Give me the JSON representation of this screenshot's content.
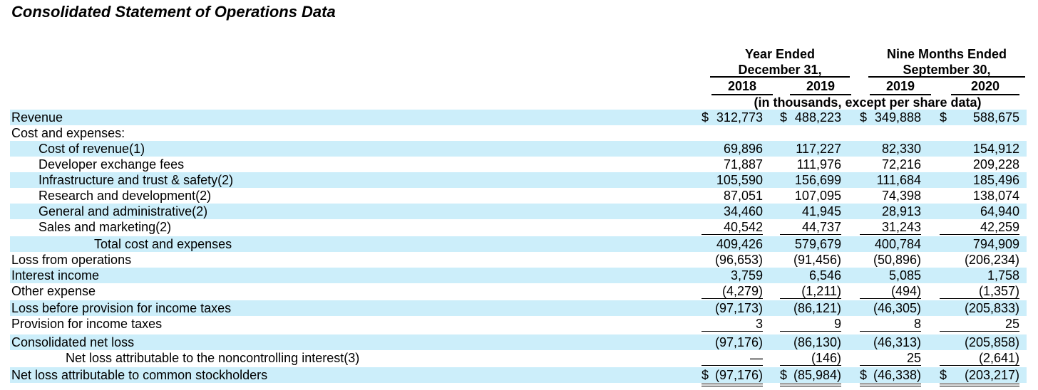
{
  "title": "Consolidated Statement of Operations Data",
  "header": {
    "year_ended": [
      "Year Ended",
      "December 31,"
    ],
    "nine_months": [
      "Nine Months Ended",
      "September 30,"
    ],
    "years": [
      "2018",
      "2019",
      "2019",
      "2020"
    ],
    "unit_note": "(in thousands, except per share data)"
  },
  "rows": [
    {
      "label": "Revenue",
      "values": [
        "312,773",
        "488,223",
        "349,888",
        "588,675"
      ],
      "dollar": true
    },
    {
      "label": "Cost and expenses:",
      "values": [
        "",
        "",
        "",
        ""
      ]
    },
    {
      "label": "Cost of revenue(1)",
      "values": [
        "69,896",
        "117,227",
        "82,330",
        "154,912"
      ]
    },
    {
      "label": "Developer exchange fees",
      "values": [
        "71,887",
        "111,976",
        "72,216",
        "209,228"
      ]
    },
    {
      "label": "Infrastructure and trust & safety(2)",
      "values": [
        "105,590",
        "156,699",
        "111,684",
        "185,496"
      ]
    },
    {
      "label": "Research and development(2)",
      "values": [
        "87,051",
        "107,095",
        "74,398",
        "138,074"
      ]
    },
    {
      "label": "General and administrative(2)",
      "values": [
        "34,460",
        "41,945",
        "28,913",
        "64,940"
      ]
    },
    {
      "label": "Sales and marketing(2)",
      "values": [
        "40,542",
        "44,737",
        "31,243",
        "42,259"
      ]
    },
    {
      "label": "Total cost and expenses",
      "values": [
        "409,426",
        "579,679",
        "400,784",
        "794,909"
      ]
    },
    {
      "label": "Loss from operations",
      "values": [
        "(96,653)",
        "(91,456)",
        "(50,896)",
        "(206,234)"
      ]
    },
    {
      "label": "Interest income",
      "values": [
        "3,759",
        "6,546",
        "5,085",
        "1,758"
      ]
    },
    {
      "label": "Other expense",
      "values": [
        "(4,279)",
        "(1,211)",
        "(494)",
        "(1,357)"
      ]
    },
    {
      "label": "Loss before provision for income taxes",
      "values": [
        "(97,173)",
        "(86,121)",
        "(46,305)",
        "(205,833)"
      ]
    },
    {
      "label": "Provision for income taxes",
      "values": [
        "3",
        "9",
        "8",
        "25"
      ]
    },
    {
      "label": "Consolidated net loss",
      "values": [
        "(97,176)",
        "(86,130)",
        "(46,313)",
        "(205,858)"
      ]
    },
    {
      "label": "Net loss attributable to the noncontrolling interest(3)",
      "values": [
        "—",
        "(146)",
        "25",
        "(2,641)"
      ]
    },
    {
      "label": "Net loss attributable to common stockholders",
      "values": [
        "(97,176)",
        "(85,984)",
        "(46,338)",
        "(203,217)"
      ],
      "dollar": true
    }
  ]
}
